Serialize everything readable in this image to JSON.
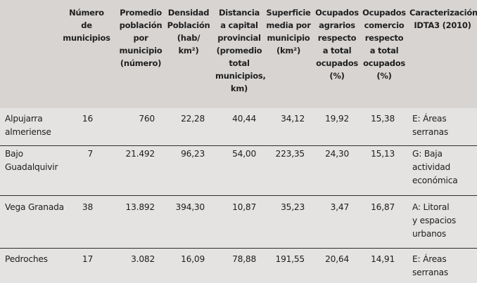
{
  "table": {
    "headers": [
      "Número\nde municipios",
      "Promedio\npoblación\npor\nmunicipio\n(número)",
      "Densidad\nPoblación\n(hab/ km²)",
      "Distancia\na capital\nprovincial\n(promedio\ntotal\nmunicipios,\nkm)",
      "Superficie\nmedia por\nmunicipio\n(km²)",
      "Ocupados\nagrarios\nrespecto\na total\nocupados\n(%)",
      "Ocupados\ncomercio\nrespecto\na total\nocupados\n(%)",
      "Caracterización\nIDTA3 (2010)"
    ],
    "rows": [
      {
        "name": "Alpujarra\nalmeriense",
        "municipios": "16",
        "poblacion": "760",
        "densidad": "22,28",
        "distancia": "40,44",
        "superficie": "34,12",
        "agrarios": "19,92",
        "comercio": "15,38",
        "caracterizacion": "E: Áreas\nserranas"
      },
      {
        "name": "Bajo\nGuadalquivir",
        "municipios": "7",
        "poblacion": "21.492",
        "densidad": "96,23",
        "distancia": "54,00",
        "superficie": "223,35",
        "agrarios": "24,30",
        "comercio": "15,13",
        "caracterizacion": "G: Baja\nactividad\neconómica"
      },
      {
        "name": "Vega Granada",
        "municipios": "38",
        "poblacion": "13.892",
        "densidad": "394,30",
        "distancia": "10,87",
        "superficie": "35,23",
        "agrarios": "3,47",
        "comercio": "16,87",
        "caracterizacion": "A: Litoral\ny espacios\nurbanos"
      },
      {
        "name": "Pedroches",
        "municipios": "17",
        "poblacion": "3.082",
        "densidad": "16,09",
        "distancia": "78,88",
        "superficie": "191,55",
        "agrarios": "20,64",
        "comercio": "14,91",
        "caracterizacion": "E: Áreas\nserranas"
      }
    ]
  }
}
